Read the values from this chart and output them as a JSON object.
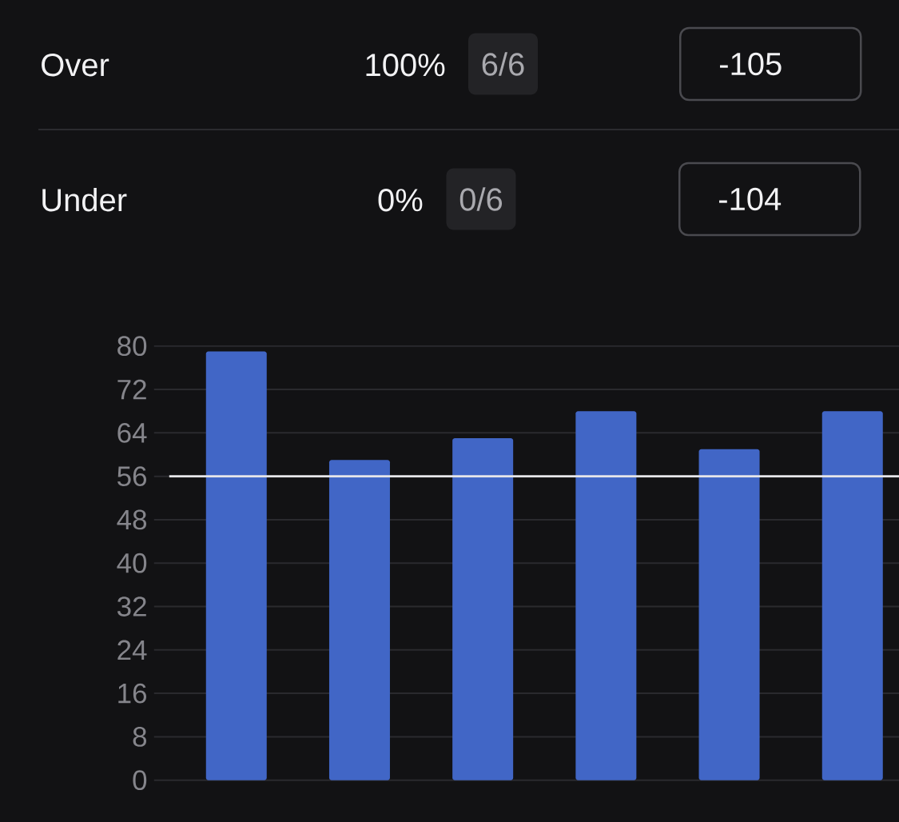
{
  "chart_data": {
    "type": "bar",
    "categories": [
      null,
      null,
      null,
      null,
      null,
      null
    ],
    "values": [
      79,
      59,
      63,
      68,
      61,
      68
    ],
    "color": "#4166c6",
    "ylim": [
      0,
      80
    ],
    "yticks": [
      0,
      8,
      16,
      24,
      32,
      40,
      48,
      56,
      64,
      72,
      80
    ],
    "grid": "y",
    "tick_labels": "y",
    "ref_lines": [
      {
        "axis": "y",
        "value": 56,
        "color": "#e6e6ea"
      }
    ],
    "annotations": [
      "Over",
      "100%",
      "6/6",
      "-105",
      "Under",
      "0%",
      "0/6",
      "-104"
    ]
  }
}
